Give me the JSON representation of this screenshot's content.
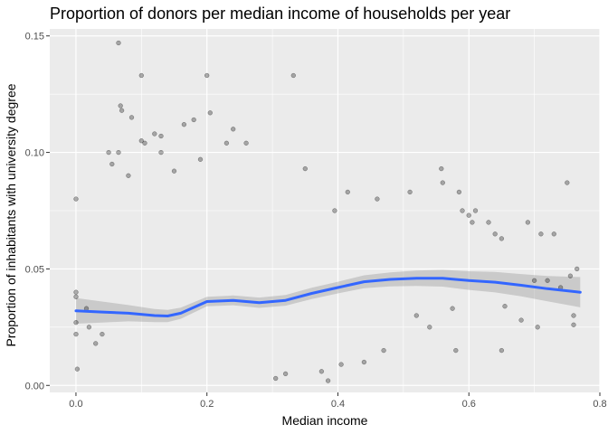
{
  "chart_data": {
    "type": "scatter",
    "title": "Proportion of donors per median income of households per year",
    "xlabel": "Median income",
    "ylabel": "Proportion of inhabitants with university degree",
    "xlim": [
      -0.04,
      0.8
    ],
    "ylim": [
      -0.003,
      0.153
    ],
    "x_ticks": [
      0.0,
      0.2,
      0.4,
      0.6,
      0.8
    ],
    "x_tick_labels": [
      "0.0",
      "0.2",
      "0.4",
      "0.6",
      "0.8"
    ],
    "y_ticks": [
      0.0,
      0.05,
      0.1,
      0.15
    ],
    "y_tick_labels": [
      "0.00",
      "0.05",
      "0.10",
      "0.15"
    ],
    "grid": true,
    "legend": "none",
    "point_color": "#000000",
    "point_alpha": 0.3,
    "smooth_color": "#3366FF",
    "ribbon_color": "#999999",
    "panel_background": "#EBEBEB",
    "grid_color": "#FFFFFF",
    "series": [
      {
        "type": "scatter",
        "values": [
          [
            0.065,
            0.147
          ],
          [
            0.1,
            0.133
          ],
          [
            0.2,
            0.133
          ],
          [
            0.332,
            0.133
          ],
          [
            0.068,
            0.12
          ],
          [
            0.07,
            0.118
          ],
          [
            0.205,
            0.117
          ],
          [
            0.085,
            0.115
          ],
          [
            0.18,
            0.114
          ],
          [
            0.165,
            0.112
          ],
          [
            0.24,
            0.11
          ],
          [
            0.12,
            0.108
          ],
          [
            0.13,
            0.107
          ],
          [
            0.1,
            0.105
          ],
          [
            0.105,
            0.104
          ],
          [
            0.23,
            0.104
          ],
          [
            0.26,
            0.104
          ],
          [
            0.065,
            0.1
          ],
          [
            0.05,
            0.1
          ],
          [
            0.13,
            0.1
          ],
          [
            0.19,
            0.097
          ],
          [
            0.055,
            0.095
          ],
          [
            0.15,
            0.092
          ],
          [
            0.08,
            0.09
          ],
          [
            0.35,
            0.093
          ],
          [
            0.558,
            0.093
          ],
          [
            0.75,
            0.087
          ],
          [
            0.56,
            0.087
          ],
          [
            0.0,
            0.08
          ],
          [
            0.46,
            0.08
          ],
          [
            0.415,
            0.083
          ],
          [
            0.51,
            0.083
          ],
          [
            0.585,
            0.083
          ],
          [
            0.6,
            0.073
          ],
          [
            0.59,
            0.075
          ],
          [
            0.61,
            0.075
          ],
          [
            0.395,
            0.075
          ],
          [
            0.605,
            0.07
          ],
          [
            0.63,
            0.07
          ],
          [
            0.65,
            0.063
          ],
          [
            0.64,
            0.065
          ],
          [
            0.71,
            0.065
          ],
          [
            0.73,
            0.065
          ],
          [
            0.69,
            0.07
          ],
          [
            0.755,
            0.047
          ],
          [
            0.765,
            0.05
          ],
          [
            0.7,
            0.045
          ],
          [
            0.72,
            0.045
          ],
          [
            0.74,
            0.042
          ],
          [
            0.76,
            0.03
          ],
          [
            0.76,
            0.026
          ],
          [
            0.705,
            0.025
          ],
          [
            0.68,
            0.028
          ],
          [
            0.655,
            0.034
          ],
          [
            0.0,
            0.04
          ],
          [
            0.0,
            0.038
          ],
          [
            0.0,
            0.027
          ],
          [
            0.0,
            0.022
          ],
          [
            0.002,
            0.007
          ],
          [
            0.016,
            0.033
          ],
          [
            0.02,
            0.025
          ],
          [
            0.03,
            0.018
          ],
          [
            0.04,
            0.022
          ],
          [
            0.32,
            0.005
          ],
          [
            0.305,
            0.003
          ],
          [
            0.375,
            0.006
          ],
          [
            0.385,
            0.002
          ],
          [
            0.405,
            0.009
          ],
          [
            0.44,
            0.01
          ],
          [
            0.58,
            0.015
          ],
          [
            0.52,
            0.03
          ],
          [
            0.54,
            0.025
          ],
          [
            0.575,
            0.033
          ],
          [
            0.65,
            0.015
          ],
          [
            0.47,
            0.015
          ]
        ]
      },
      {
        "type": "smooth",
        "name": "",
        "points": [
          [
            0.0,
            0.032
          ],
          [
            0.04,
            0.0315
          ],
          [
            0.08,
            0.031
          ],
          [
            0.12,
            0.03
          ],
          [
            0.14,
            0.0298
          ],
          [
            0.16,
            0.031
          ],
          [
            0.2,
            0.036
          ],
          [
            0.24,
            0.0365
          ],
          [
            0.28,
            0.0355
          ],
          [
            0.32,
            0.0365
          ],
          [
            0.36,
            0.0395
          ],
          [
            0.4,
            0.042
          ],
          [
            0.44,
            0.0445
          ],
          [
            0.48,
            0.0455
          ],
          [
            0.52,
            0.046
          ],
          [
            0.56,
            0.046
          ],
          [
            0.6,
            0.045
          ],
          [
            0.64,
            0.0443
          ],
          [
            0.68,
            0.043
          ],
          [
            0.72,
            0.0415
          ],
          [
            0.77,
            0.04
          ]
        ],
        "band_width": [
          [
            0.0,
            0.0055
          ],
          [
            0.1,
            0.003
          ],
          [
            0.2,
            0.002
          ],
          [
            0.4,
            0.0025
          ],
          [
            0.55,
            0.0035
          ],
          [
            0.7,
            0.005
          ],
          [
            0.77,
            0.0065
          ]
        ]
      }
    ]
  }
}
